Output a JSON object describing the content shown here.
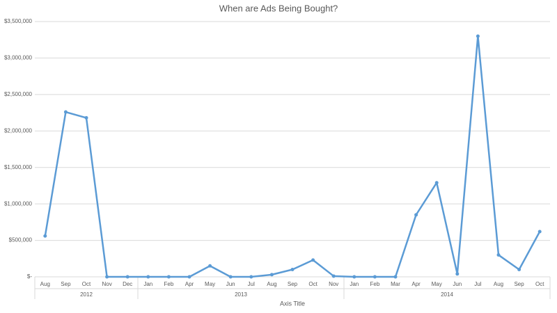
{
  "chart_data": {
    "type": "line",
    "title": "When are Ads Being Bought?",
    "x_axis_title": "Axis Title",
    "color": "#5b9bd5",
    "grid": true,
    "ylim": [
      0,
      3500000
    ],
    "yticks": [
      {
        "value": 0,
        "label": "$-"
      },
      {
        "value": 500000,
        "label": "$500,000"
      },
      {
        "value": 1000000,
        "label": "$1,000,000"
      },
      {
        "value": 1500000,
        "label": "$1,500,000"
      },
      {
        "value": 2000000,
        "label": "$2,000,000"
      },
      {
        "value": 2500000,
        "label": "$2,500,000"
      },
      {
        "value": 3000000,
        "label": "$3,000,000"
      },
      {
        "value": 3500000,
        "label": "$3,500,000"
      }
    ],
    "groups": [
      {
        "name": "2012",
        "categories": [
          "Aug",
          "Sep",
          "Oct",
          "Nov",
          "Dec"
        ],
        "values": [
          560000,
          2260000,
          2180000,
          0,
          0
        ]
      },
      {
        "name": "2013",
        "categories": [
          "Jan",
          "Feb",
          "Apr",
          "May",
          "Jun",
          "Jul",
          "Aug",
          "Sep",
          "Oct",
          "Nov"
        ],
        "values": [
          0,
          0,
          0,
          150000,
          0,
          0,
          30000,
          100000,
          230000,
          10000
        ]
      },
      {
        "name": "2014",
        "categories": [
          "Jan",
          "Feb",
          "Mar",
          "Apr",
          "May",
          "Jun",
          "Jul",
          "Aug",
          "Sep",
          "Oct"
        ],
        "values": [
          0,
          0,
          0,
          850000,
          1290000,
          40000,
          3300000,
          300000,
          100000,
          620000
        ]
      }
    ]
  }
}
